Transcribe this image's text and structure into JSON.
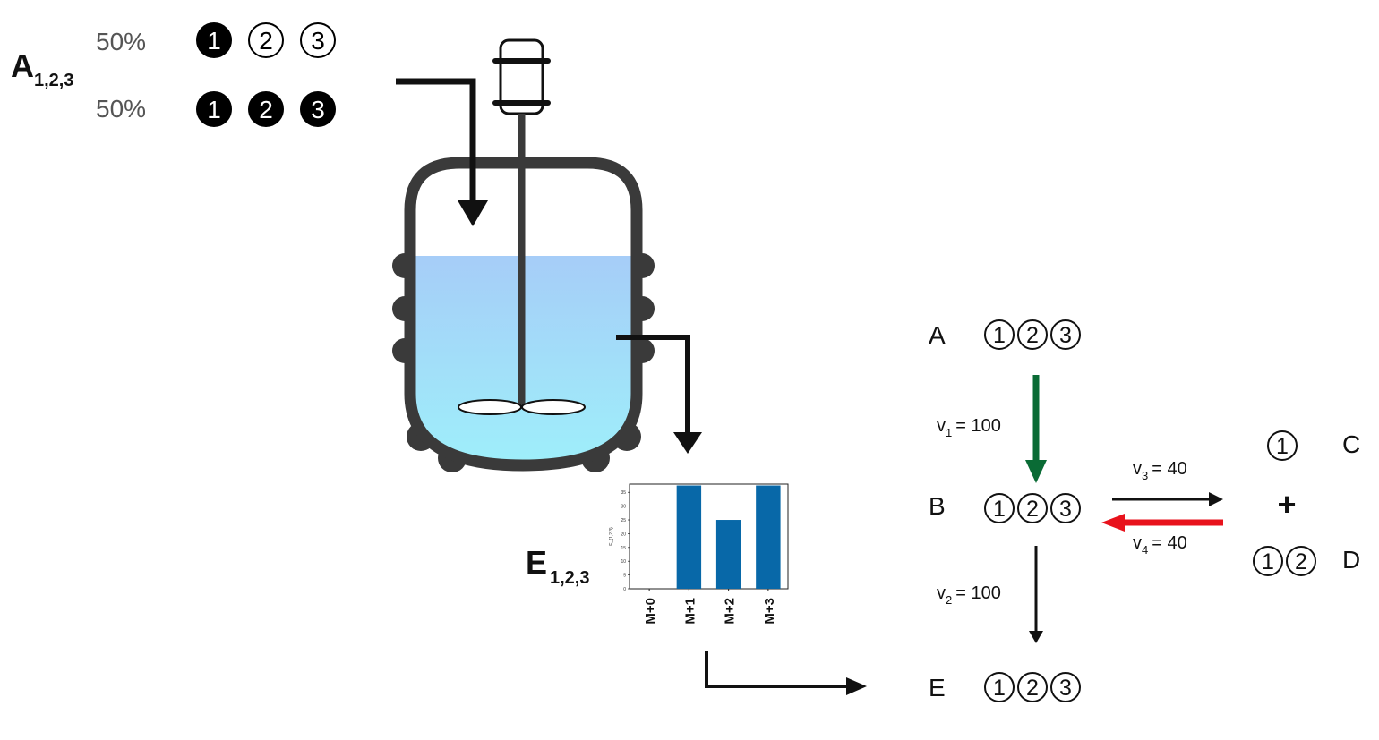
{
  "input_label": {
    "main": "A",
    "sub": "1,2,3"
  },
  "isotopologues": [
    {
      "percent": "50%",
      "atoms": [
        "1",
        "2",
        "3"
      ],
      "labeled": [
        true,
        false,
        false
      ]
    },
    {
      "percent": "50%",
      "atoms": [
        "1",
        "2",
        "3"
      ],
      "labeled": [
        true,
        true,
        true
      ]
    }
  ],
  "output_label": {
    "main": "E",
    "sub": "1,2,3"
  },
  "mid_chart": {
    "chart_data": {
      "type": "bar",
      "categories": [
        "M+0",
        "M+1",
        "M+2",
        "M+3"
      ],
      "values": [
        0,
        37.5,
        25,
        37.5
      ],
      "ylim": [
        0,
        38
      ],
      "yticks": [
        "0",
        "5",
        "10",
        "15",
        "20",
        "25",
        "30",
        "35"
      ],
      "ylabel": "E_{1,2,3}",
      "bar_color": "#0868a8"
    }
  },
  "network": {
    "metabolites": [
      {
        "name": "A",
        "atoms": [
          "1",
          "2",
          "3"
        ]
      },
      {
        "name": "B",
        "atoms": [
          "1",
          "2",
          "3"
        ]
      },
      {
        "name": "C",
        "atoms": [
          "1"
        ]
      },
      {
        "name": "D",
        "atoms": [
          "1",
          "2"
        ]
      },
      {
        "name": "E",
        "atoms": [
          "1",
          "2",
          "3"
        ]
      }
    ],
    "plus": "+",
    "fluxes": [
      {
        "var": "v",
        "sub": "1",
        "value": "= 100",
        "color": "#0a6b35"
      },
      {
        "var": "v",
        "sub": "2",
        "value": "= 100",
        "color": "#111111"
      },
      {
        "var": "v",
        "sub": "3",
        "value": "= 40",
        "color": "#111111"
      },
      {
        "var": "v",
        "sub": "4",
        "value": "= 40",
        "color": "#e8121c"
      }
    ]
  },
  "colors": {
    "vessel_wall": "#3a3a3a",
    "liquid_top": "#a6cdf8",
    "liquid_bottom": "#9ef0fa",
    "labeled_atom": "#000000",
    "unlabeled_atom": "#ffffff"
  }
}
